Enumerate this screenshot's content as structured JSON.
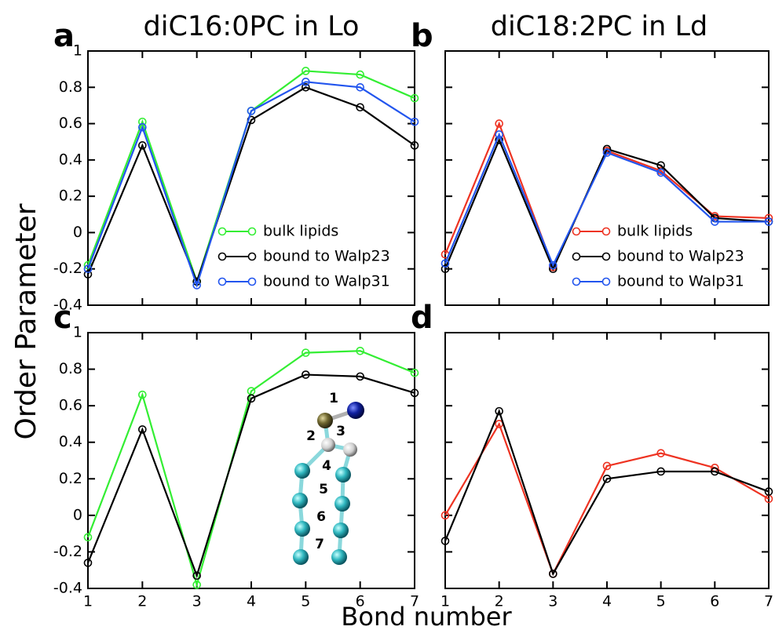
{
  "ylabel": "Order Parameter",
  "xlabel": "Bond number",
  "chart_data": [
    {
      "type": "line",
      "label": "a",
      "title": "diC16:0PC in Lo",
      "x": [
        1,
        2,
        3,
        4,
        5,
        6,
        7
      ],
      "xlim": [
        1,
        7
      ],
      "xticks": [
        1,
        2,
        3,
        4,
        5,
        6,
        7
      ],
      "xtick_labels": false,
      "ylim": [
        -0.4,
        1
      ],
      "yticks": [
        -0.4,
        -0.2,
        0,
        0.2,
        0.4,
        0.6,
        0.8,
        1
      ],
      "ytick_labels": true,
      "legend": "lower right",
      "series": [
        {
          "name": "bulk lipids",
          "color": "#33ee33",
          "values": [
            -0.18,
            0.61,
            -0.27,
            0.67,
            0.89,
            0.87,
            0.74
          ]
        },
        {
          "name": "bound to Walp23",
          "color": "#000000",
          "values": [
            -0.23,
            0.48,
            -0.27,
            0.62,
            0.8,
            0.69,
            0.48
          ]
        },
        {
          "name": "bound to Walp31",
          "color": "#2255ee",
          "values": [
            -0.2,
            0.58,
            -0.29,
            0.67,
            0.83,
            0.8,
            0.61
          ]
        }
      ]
    },
    {
      "type": "line",
      "label": "b",
      "title": "diC18:2PC in Ld",
      "x": [
        1,
        2,
        3,
        4,
        5,
        6,
        7
      ],
      "xlim": [
        1,
        7
      ],
      "xticks": [
        1,
        2,
        3,
        4,
        5,
        6,
        7
      ],
      "xtick_labels": false,
      "ylim": [
        -0.4,
        1
      ],
      "yticks": [
        -0.4,
        -0.2,
        0,
        0.2,
        0.4,
        0.6,
        0.8,
        1
      ],
      "ytick_labels": false,
      "legend": "lower right",
      "series": [
        {
          "name": "bulk lipids",
          "color": "#ee3322",
          "values": [
            -0.12,
            0.6,
            -0.19,
            0.45,
            0.34,
            0.09,
            0.08
          ]
        },
        {
          "name": "bound to Walp23",
          "color": "#000000",
          "values": [
            -0.2,
            0.51,
            -0.2,
            0.46,
            0.37,
            0.08,
            0.06
          ]
        },
        {
          "name": "bound to Walp31",
          "color": "#2255ee",
          "values": [
            -0.17,
            0.54,
            -0.18,
            0.44,
            0.33,
            0.06,
            0.06
          ]
        }
      ]
    },
    {
      "type": "line",
      "label": "c",
      "x": [
        1,
        2,
        3,
        4,
        5,
        6,
        7
      ],
      "xlim": [
        1,
        7
      ],
      "xticks": [
        1,
        2,
        3,
        4,
        5,
        6,
        7
      ],
      "xtick_labels": true,
      "ylim": [
        -0.4,
        1
      ],
      "yticks": [
        -0.4,
        -0.2,
        0,
        0.2,
        0.4,
        0.6,
        0.8,
        1
      ],
      "ytick_labels": true,
      "annotations": [
        "1",
        "2",
        "3",
        "4",
        "5",
        "6",
        "7"
      ],
      "series": [
        {
          "color": "#33ee33",
          "values": [
            -0.12,
            0.66,
            -0.38,
            0.68,
            0.89,
            0.9,
            0.78
          ]
        },
        {
          "color": "#000000",
          "values": [
            -0.26,
            0.47,
            -0.33,
            0.64,
            0.77,
            0.76,
            0.67
          ]
        }
      ]
    },
    {
      "type": "line",
      "label": "d",
      "x": [
        1,
        2,
        3,
        4,
        5,
        6,
        7
      ],
      "xlim": [
        1,
        7
      ],
      "xticks": [
        1,
        2,
        3,
        4,
        5,
        6,
        7
      ],
      "xtick_labels": true,
      "ylim": [
        -0.4,
        1
      ],
      "yticks": [
        -0.4,
        -0.2,
        0,
        0.2,
        0.4,
        0.6,
        0.8,
        1
      ],
      "ytick_labels": false,
      "series": [
        {
          "color": "#ee3322",
          "values": [
            0.0,
            0.5,
            -0.32,
            0.27,
            0.34,
            0.26,
            0.09
          ]
        },
        {
          "color": "#000000",
          "values": [
            -0.14,
            0.57,
            -0.32,
            0.2,
            0.24,
            0.24,
            0.13
          ]
        }
      ]
    }
  ]
}
